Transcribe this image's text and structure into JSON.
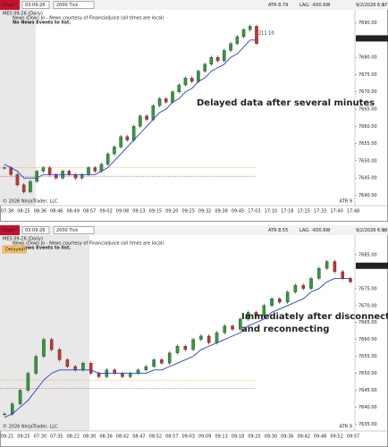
{
  "panels": [
    {
      "toolbar": {
        "tab": "Chart",
        "clock": "03:09:26",
        "interval": "2000 Tick",
        "atr": "ATR 8.79",
        "lag": "LAG: -600.6W",
        "datetime": "9/2/2026 6:57:57"
      },
      "chart_data": {
        "type": "candlestick",
        "instrument": "MES 09-26 (Daily)",
        "news": "News (Dow) Jo - News courtesy of FinancialJuice (all times are local)",
        "no_news": "No News Events to list.",
        "annotation": [
          "Delayed data after several minutes"
        ],
        "trade_label": "211  10",
        "copyright": "© 2026 NinjaTrader, LLC",
        "indicator_label": "ATR 9",
        "ylim": [
          7637,
          7693
        ],
        "yticks": [
          {
            "value": 7640,
            "label": "7640.00"
          },
          {
            "value": 7645,
            "label": "7645.00"
          },
          {
            "value": 7650,
            "label": "7650.00"
          },
          {
            "value": 7655,
            "label": "7655.00"
          },
          {
            "value": 7660,
            "label": "7660.00"
          },
          {
            "value": 7665,
            "label": "7665.00"
          },
          {
            "value": 7670,
            "label": "7670.00"
          },
          {
            "value": 7675,
            "label": "7675.00"
          },
          {
            "value": 7680,
            "label": "7680.00"
          },
          {
            "value": 7690,
            "label": "7690.00"
          }
        ],
        "last_price": {
          "value": 7685.5,
          "label": "7685.50"
        },
        "levels": [
          {
            "value": 7648,
            "color": "#f0a030"
          },
          {
            "value": 7645.5,
            "color": "#c0392b"
          }
        ],
        "time_labels": [
          "07:38",
          "08:25",
          "08:36",
          "08:46",
          "08:49",
          "08:57",
          "09:02",
          "09:08",
          "09:13",
          "09:15",
          "09:20",
          "09:25",
          "09:32",
          "09:38",
          "09:45",
          "17:03",
          "17:10",
          "17:18",
          "17:25",
          "17:33",
          "17:40",
          "17:48"
        ],
        "closes": [
          7648,
          7646,
          7643,
          7641,
          7644,
          7647,
          7648,
          7646,
          7645,
          7647,
          7646,
          7645,
          7646,
          7648,
          7647,
          7649,
          7652,
          7654,
          7657,
          7656,
          7660,
          7663,
          7662,
          7666,
          7668,
          7667,
          7670,
          7672,
          7674,
          7673,
          7676,
          7678,
          7680,
          7679,
          7682,
          7684,
          7686,
          7688,
          7689,
          7684
        ],
        "ma": [
          7649,
          7648,
          7647,
          7645,
          7645,
          7645,
          7646,
          7646,
          7646,
          7646,
          7646,
          7646,
          7646,
          7646,
          7646,
          7647,
          7648,
          7650,
          7652,
          7654,
          7656,
          7658,
          7660,
          7662,
          7664,
          7665,
          7667,
          7668,
          7670,
          7671,
          7673,
          7674,
          7676,
          7677,
          7678,
          7680,
          7681,
          7683,
          7685,
          7685
        ]
      }
    },
    {
      "toolbar": {
        "tab": "Chart",
        "clock": "03:09:26",
        "interval": "2000 Tick",
        "atr": "ATR 8.55",
        "lag": "LAG: -600.6W",
        "datetime": "9/2/2026 6:58:07"
      },
      "chart_data": {
        "type": "candlestick",
        "instrument": "MES 09-26 (Daily)",
        "news": "News (Dow) Jo - News courtesy of FinancialJuice (all times are local)",
        "no_news": "No News Events to list.",
        "badge": "Delayed!!",
        "annotation": [
          "Immediately after disconnecting",
          "and reconnecting"
        ],
        "trade_label": "344",
        "copyright": "© 2026 NinjaTrader, LLC",
        "indicator_label": "ATR 9",
        "ylim": [
          7633,
          7690
        ],
        "yticks": [
          {
            "value": 7635,
            "label": "7635.00"
          },
          {
            "value": 7640,
            "label": "7640.00"
          },
          {
            "value": 7645,
            "label": "7645.00"
          },
          {
            "value": 7650,
            "label": "7650.00"
          },
          {
            "value": 7655,
            "label": "7655.00"
          },
          {
            "value": 7660,
            "label": "7660.00"
          },
          {
            "value": 7665,
            "label": "7665.00"
          },
          {
            "value": 7670,
            "label": "7670.00"
          },
          {
            "value": 7675,
            "label": "7675.00"
          },
          {
            "value": 7685,
            "label": "7685.00"
          }
        ],
        "last_price": {
          "value": 7681.75,
          "label": "7681.75"
        },
        "levels": [
          {
            "value": 7648,
            "color": "#f0a030"
          },
          {
            "value": 7645.5,
            "color": "#c0392b"
          }
        ],
        "time_labels": [
          "09:21",
          "09:25",
          "07:30",
          "07:35",
          "08:22",
          "08:30",
          "08:36",
          "08:42",
          "08:47",
          "08:52",
          "08:57",
          "09:03",
          "09:09",
          "09:13",
          "09:18",
          "09:25",
          "09:30",
          "09:36",
          "09:42",
          "09:48",
          "09:52",
          "09:57"
        ],
        "closes": [
          7638,
          7641,
          7645,
          7650,
          7655,
          7660,
          7657,
          7654,
          7652,
          7651,
          7653,
          7650,
          7649,
          7651,
          7650,
          7649,
          7650,
          7651,
          7652,
          7654,
          7653,
          7656,
          7658,
          7657,
          7660,
          7661,
          7659,
          7662,
          7664,
          7663,
          7666,
          7668,
          7667,
          7670,
          7672,
          7671,
          7674,
          7676,
          7675,
          7678,
          7681,
          7683,
          7680,
          7678,
          7677
        ],
        "ma": [
          7637,
          7638,
          7640,
          7642,
          7645,
          7648,
          7650,
          7651,
          7651,
          7651,
          7651,
          7651,
          7650,
          7650,
          7650,
          7650,
          7650,
          7650,
          7650,
          7651,
          7651,
          7652,
          7653,
          7654,
          7655,
          7657,
          7658,
          7659,
          7660,
          7661,
          7662,
          7664,
          7665,
          7666,
          7668,
          7669,
          7670,
          7671,
          7672,
          7674,
          7675,
          7677,
          7678,
          7678,
          7678
        ]
      }
    }
  ]
}
